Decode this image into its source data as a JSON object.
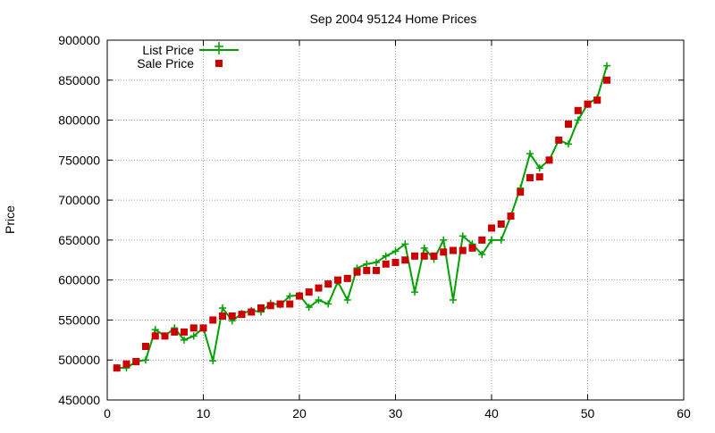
{
  "chart_data": {
    "type": "line",
    "title": "Sep 2004 95124 Home Prices",
    "xlabel": "",
    "ylabel": "Price",
    "xlim": [
      0,
      60
    ],
    "ylim": [
      450000,
      900000
    ],
    "x_ticks": [
      0,
      10,
      20,
      30,
      40,
      50,
      60
    ],
    "y_ticks": [
      450000,
      500000,
      550000,
      600000,
      650000,
      700000,
      750000,
      800000,
      850000,
      900000
    ],
    "grid": true,
    "legend_position": "top-left",
    "series": [
      {
        "name": "List Price",
        "style": "line-with-plus-markers",
        "color": "#00a000",
        "x": [
          1,
          2,
          3,
          4,
          5,
          6,
          7,
          8,
          9,
          10,
          11,
          12,
          13,
          14,
          15,
          16,
          17,
          18,
          19,
          20,
          21,
          22,
          23,
          24,
          25,
          26,
          27,
          28,
          29,
          30,
          31,
          32,
          33,
          34,
          35,
          36,
          37,
          38,
          39,
          40,
          41,
          42,
          43,
          44,
          45,
          46,
          47,
          48,
          49,
          50,
          51,
          52
        ],
        "values": [
          490000,
          490000,
          498000,
          500000,
          538000,
          530000,
          540000,
          525000,
          530000,
          540000,
          499000,
          565000,
          549000,
          558000,
          562000,
          560000,
          571000,
          569000,
          580000,
          581000,
          566000,
          575000,
          570000,
          598000,
          575000,
          615000,
          620000,
          622000,
          630000,
          636000,
          645000,
          585000,
          640000,
          626000,
          650000,
          575000,
          655000,
          645000,
          632000,
          650000,
          650000,
          680000,
          715000,
          758000,
          740000,
          750000,
          775000,
          770000,
          800000,
          820000,
          828000,
          868000
        ]
      },
      {
        "name": "Sale Price",
        "style": "square-markers",
        "color": "#cc0000",
        "x": [
          1,
          2,
          3,
          4,
          5,
          6,
          7,
          8,
          9,
          10,
          11,
          12,
          13,
          14,
          15,
          16,
          17,
          18,
          19,
          20,
          21,
          22,
          23,
          24,
          25,
          26,
          27,
          28,
          29,
          30,
          31,
          32,
          33,
          34,
          35,
          36,
          37,
          38,
          39,
          40,
          41,
          42,
          43,
          44,
          45,
          46,
          47,
          48,
          49,
          50,
          51,
          52
        ],
        "values": [
          490000,
          495000,
          498000,
          517000,
          530000,
          530000,
          535000,
          535000,
          540000,
          540000,
          550000,
          555000,
          555000,
          557000,
          560000,
          565000,
          568000,
          570000,
          570000,
          580000,
          585000,
          590000,
          595000,
          600000,
          602000,
          610000,
          612000,
          612000,
          620000,
          622000,
          625000,
          630000,
          630000,
          630000,
          635000,
          637000,
          637000,
          640000,
          650000,
          665000,
          670000,
          680000,
          710000,
          728000,
          729000,
          750000,
          775000,
          795000,
          812000,
          820000,
          825000,
          850000
        ]
      }
    ]
  }
}
